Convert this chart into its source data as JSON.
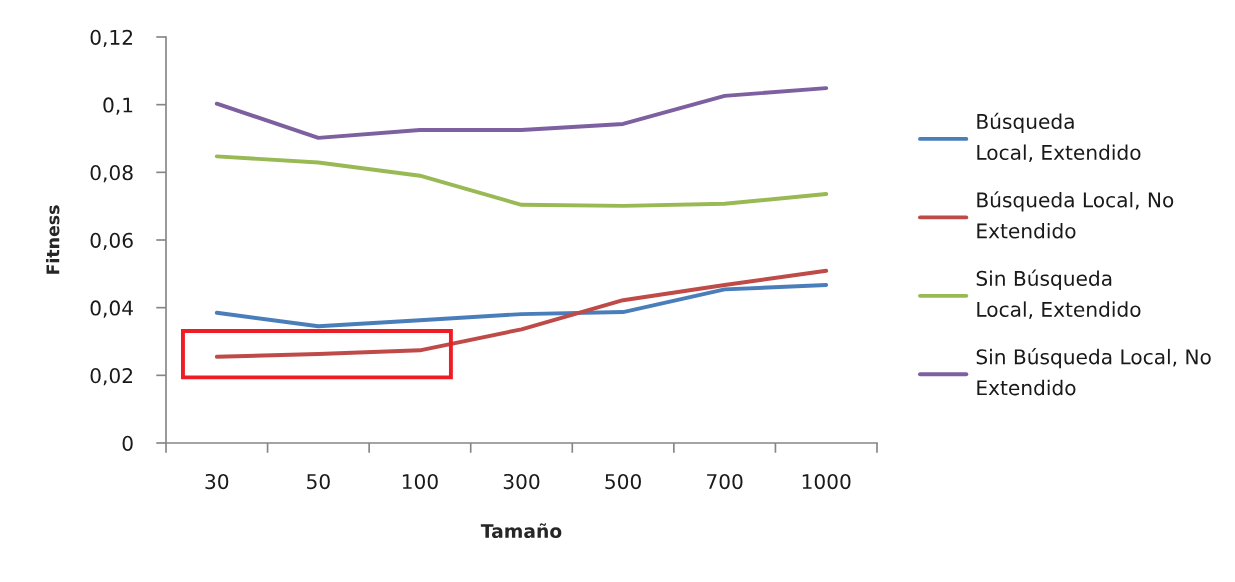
{
  "chart_data": {
    "type": "line",
    "xlabel": "Tamaño",
    "ylabel": "Fitness",
    "categories": [
      "30",
      "50",
      "100",
      "300",
      "500",
      "700",
      "1000"
    ],
    "ylim": [
      0,
      0.12
    ],
    "yticks": [
      0,
      {
        "value": 0.02,
        "label": "0,02"
      },
      {
        "value": 0.04,
        "label": "0,04"
      },
      {
        "value": 0.06,
        "label": "0,06"
      },
      {
        "value": 0.08,
        "label": "0,08"
      },
      {
        "value": 0.1,
        "label": "0,1"
      },
      {
        "value": 0.12,
        "label": "0,12"
      }
    ],
    "grid": false,
    "legend": "right",
    "series": [
      {
        "name": "Búsqueda\nLocal, Extendido",
        "color": "#4a7ebb",
        "values": [
          0.0385,
          0.0345,
          0.0363,
          0.0381,
          0.0387,
          0.0454,
          0.0467
        ]
      },
      {
        "name": "Búsqueda Local, No\nExtendido",
        "color": "#be4b48",
        "values": [
          0.0255,
          0.0263,
          0.0274,
          0.0336,
          0.0422,
          0.0467,
          0.0509
        ]
      },
      {
        "name": "Sin Búsqueda\nLocal, Extendido",
        "color": "#98b954",
        "values": [
          0.0847,
          0.0829,
          0.079,
          0.0704,
          0.0701,
          0.0707,
          0.0736
        ]
      },
      {
        "name": "Sin Búsqueda Local, No\nExtendido",
        "color": "#7d60a0",
        "values": [
          0.1003,
          0.0902,
          0.0925,
          0.0925,
          0.0943,
          0.1026,
          0.1049
        ]
      }
    ]
  }
}
